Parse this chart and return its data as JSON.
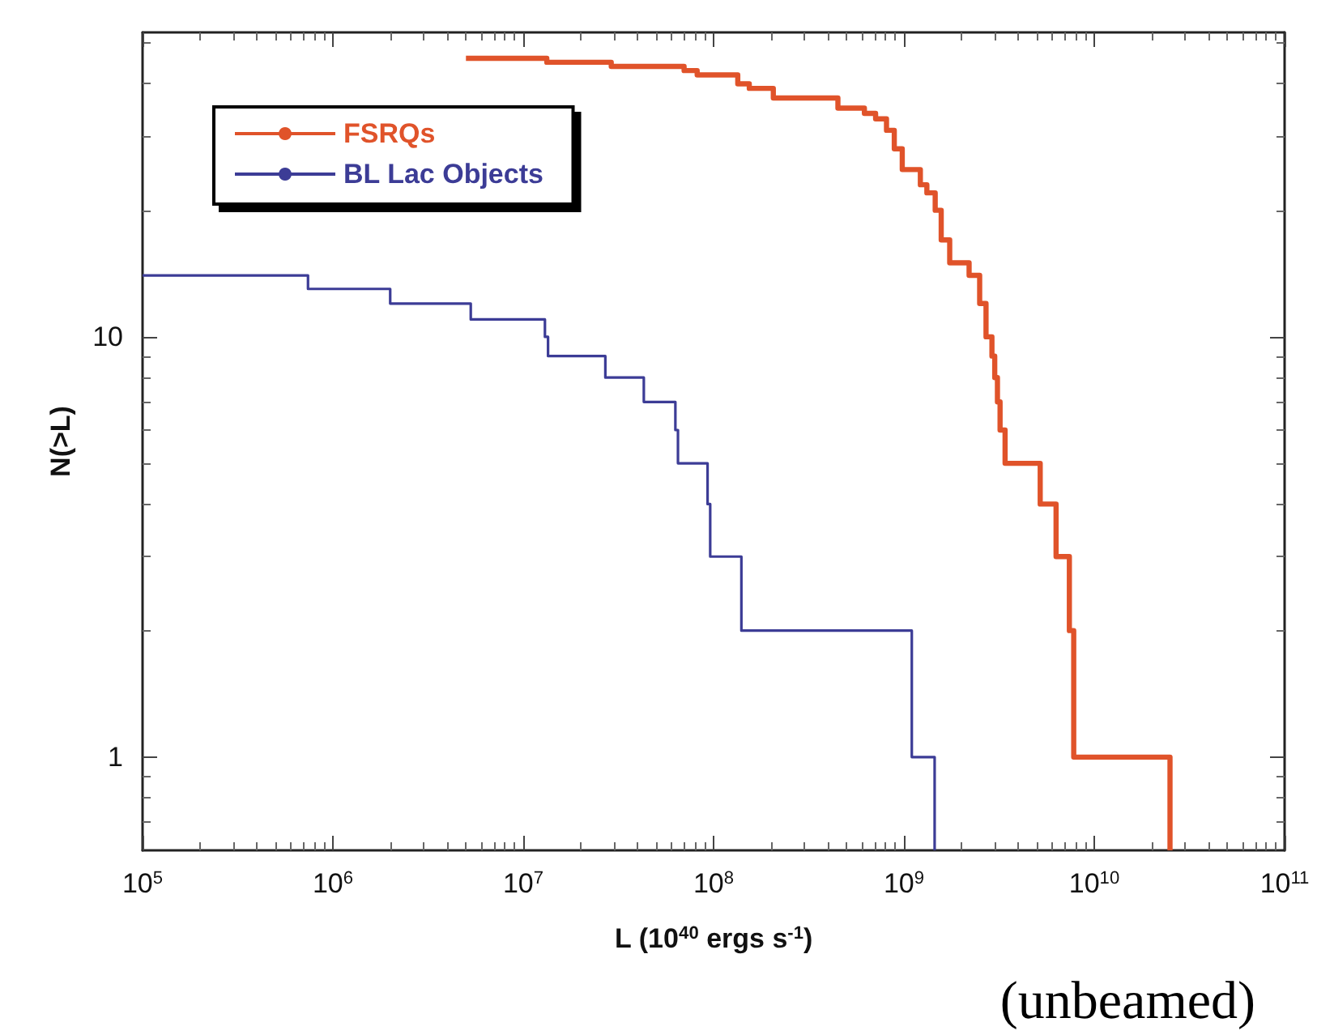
{
  "chart_data": {
    "type": "step",
    "xlabel": "L (10$^{40}$ ergs s$^{-1}$)",
    "ylabel": "N(>L)",
    "annotations": [
      "(unbeamed)"
    ],
    "log": "xy",
    "grid": false,
    "legend": "top left",
    "marker": "none",
    "line_style": "solid",
    "xlim": [
      100000,
      100000000000
    ],
    "ylim": [
      0.6,
      53
    ],
    "xticks": [
      {
        "value": 100000,
        "label": "10$^{5}$"
      },
      {
        "value": 1000000,
        "label": "10$^{6}$"
      },
      {
        "value": 10000000,
        "label": "10$^{7}$"
      },
      {
        "value": 100000000,
        "label": "10$^{8}$"
      },
      {
        "value": 1000000000,
        "label": "10$^{9}$"
      },
      {
        "value": 10000000000,
        "label": "10$^{10}$"
      },
      {
        "value": 100000000000,
        "label": "10$^{11}$"
      }
    ],
    "yticks": [
      1,
      10
    ],
    "series": [
      {
        "name": "FSRQs",
        "color": "#e0532a",
        "x": [
          5000000.0,
          13300000.0,
          29000000.0,
          70000000.0,
          82000000.0,
          134000000.0,
          154000000.0,
          206000000.0,
          450000000.0,
          620000000.0,
          710000000.0,
          810000000.0,
          890000000.0,
          980000000.0,
          1220000000.0,
          1320000000.0,
          1460000000.0,
          1570000000.0,
          1740000000.0,
          2200000000.0,
          2500000000.0,
          2700000000.0,
          2900000000.0,
          3000000000.0,
          3100000000.0,
          3200000000.0,
          3400000000.0,
          5200000000.0,
          6300000000.0,
          7400000000.0,
          7800000000.0,
          25000000000.0
        ],
        "values": [
          46,
          45,
          44,
          43,
          42,
          40,
          39,
          37,
          35,
          34,
          33,
          31,
          28,
          25,
          23,
          22,
          20,
          17,
          15,
          14,
          12,
          10,
          9,
          8,
          7,
          6,
          5,
          4,
          3,
          2,
          1,
          0.6
        ]
      },
      {
        "name": "BL Lac Objects",
        "color": "#3c3c96",
        "x": [
          100000.0,
          740000.0,
          2000000.0,
          5300000.0,
          13000000.0,
          13500000.0,
          27000000.0,
          43000000.0,
          63000000.0,
          65000000.0,
          93000000.0,
          96000000.0,
          140000000.0,
          1100000000.0,
          1450000000.0
        ],
        "values": [
          14,
          13,
          12,
          11,
          10,
          9,
          8,
          7,
          6,
          5,
          4,
          3,
          2,
          1,
          0.6
        ]
      }
    ]
  }
}
